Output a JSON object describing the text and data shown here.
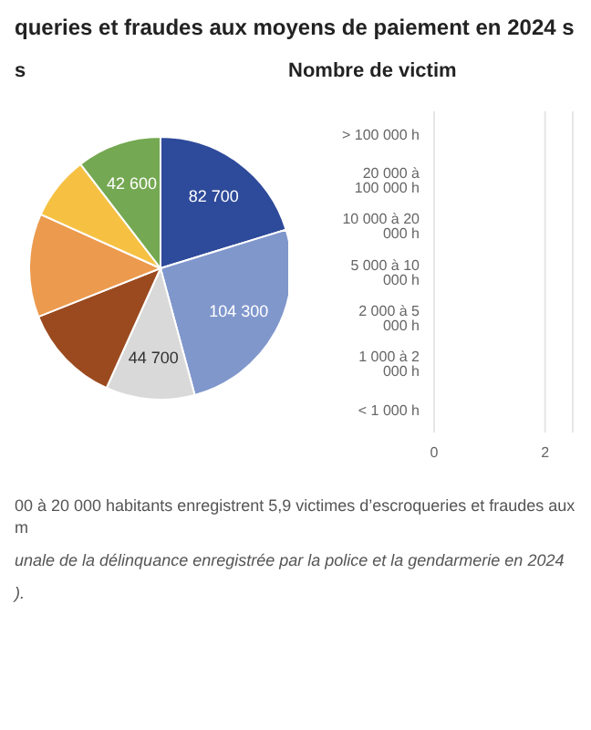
{
  "chart_data": [
    {
      "type": "pie",
      "title": "queries et fraudes aux moyens de paiement en 2024 s",
      "subtitle": "s",
      "categories": [
        null,
        null,
        null,
        null,
        null,
        null,
        null
      ],
      "values": [
        82700,
        104300,
        44700,
        50000,
        52000,
        32000,
        42600
      ],
      "value_labels": [
        "82 700",
        "104 300",
        "44 700",
        null,
        null,
        null,
        "42 600"
      ],
      "colors": [
        "#2e4a9a",
        "#8097cc",
        "#d9d9d9",
        "#9b4a1f",
        "#ec9a4e",
        "#f6c143",
        "#74a852"
      ],
      "annotations": [
        "00 à 20 000 habitants enregistrent 5,9 victimes d’escroqueries et fraudes aux m",
        "unale de la délinquance enregistrée par la police et la gendarmerie en 2024",
        ")."
      ]
    },
    {
      "type": "bar",
      "orientation": "horizontal",
      "title": "Nombre de victim",
      "categories": [
        "> 100 000 h",
        "20 000 à 100 000 h",
        "10 000 à 20 000 h",
        "5 000 à 10 000 h",
        "2 000 à 5 000 h",
        "1 000 à 2 000 h",
        "< 1 000 h"
      ],
      "values": [
        null,
        null,
        null,
        null,
        null,
        null,
        null
      ],
      "xlim": [
        0,
        2.5
      ],
      "xticks": [
        0,
        2
      ],
      "grid": "x"
    }
  ]
}
